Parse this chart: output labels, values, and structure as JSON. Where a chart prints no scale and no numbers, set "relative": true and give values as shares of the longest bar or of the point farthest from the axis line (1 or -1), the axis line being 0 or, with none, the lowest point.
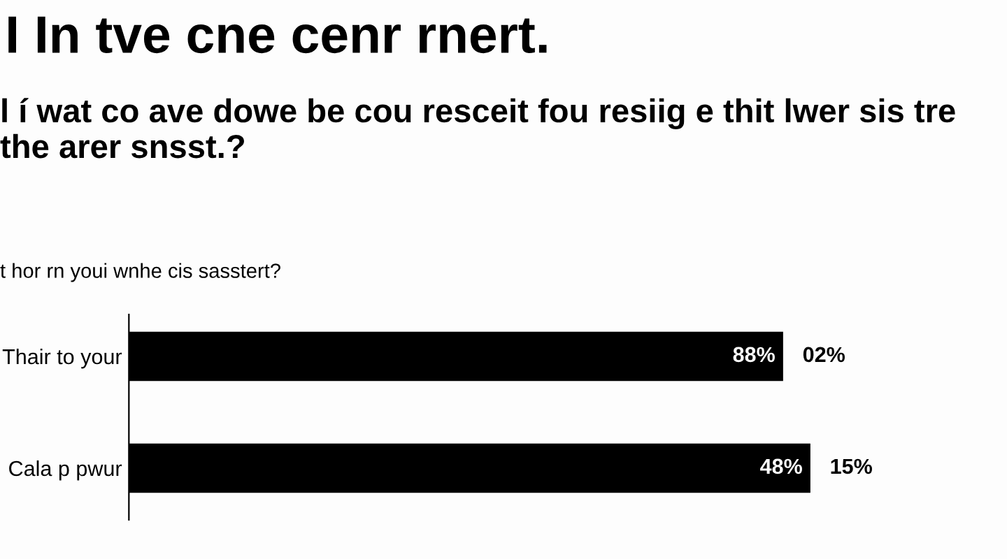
{
  "chart_data": {
    "type": "bar",
    "orientation": "horizontal",
    "relative": true,
    "title": "I In tve cne cenr rnert.",
    "subtitle": "l í wat co ave dowe be cou resceit fou resiig e thit lwer sis tre the arer snsst.?",
    "annotations": [
      "t hor rn youi wnhe cis sasstert?",
      "88%",
      "02%",
      "48%",
      "15%"
    ],
    "grid": false,
    "legend": false,
    "categories": [
      "Thair to your",
      "Cala p pwur"
    ],
    "values": [
      0.96,
      1
    ],
    "color": "#000000"
  }
}
